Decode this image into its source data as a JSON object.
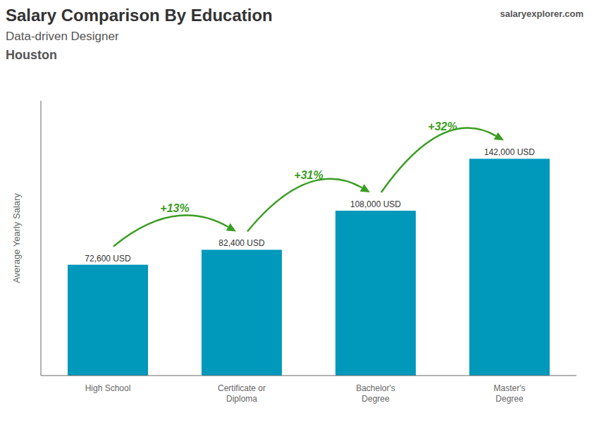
{
  "chart_data": {
    "type": "bar",
    "title": "Salary Comparison By Education",
    "subtitle": [
      "Data-driven Designer",
      "Houston"
    ],
    "ylabel": "Average Yearly Salary",
    "categories": [
      "High School",
      "Certificate or\nDiploma",
      "Bachelor's\nDegree",
      "Master's\nDegree"
    ],
    "values": [
      72600,
      82400,
      108000,
      142000
    ],
    "value_labels": [
      "72,600 USD",
      "82,400 USD",
      "108,000 USD",
      "142,000 USD"
    ],
    "data_labels": true,
    "color": "#0099bb",
    "ylim": [
      0,
      180000
    ],
    "tick_labels": "x",
    "grid": false,
    "annotations": [
      {
        "text": "salaryexplorer.com"
      },
      {
        "text": "+13%",
        "from": "High School",
        "to": "Certificate or\nDiploma"
      },
      {
        "text": "+31%",
        "from": "Certificate or\nDiploma",
        "to": "Bachelor's\nDegree"
      },
      {
        "text": "+32%",
        "from": "Bachelor's\nDegree",
        "to": "Master's\nDegree"
      }
    ]
  }
}
